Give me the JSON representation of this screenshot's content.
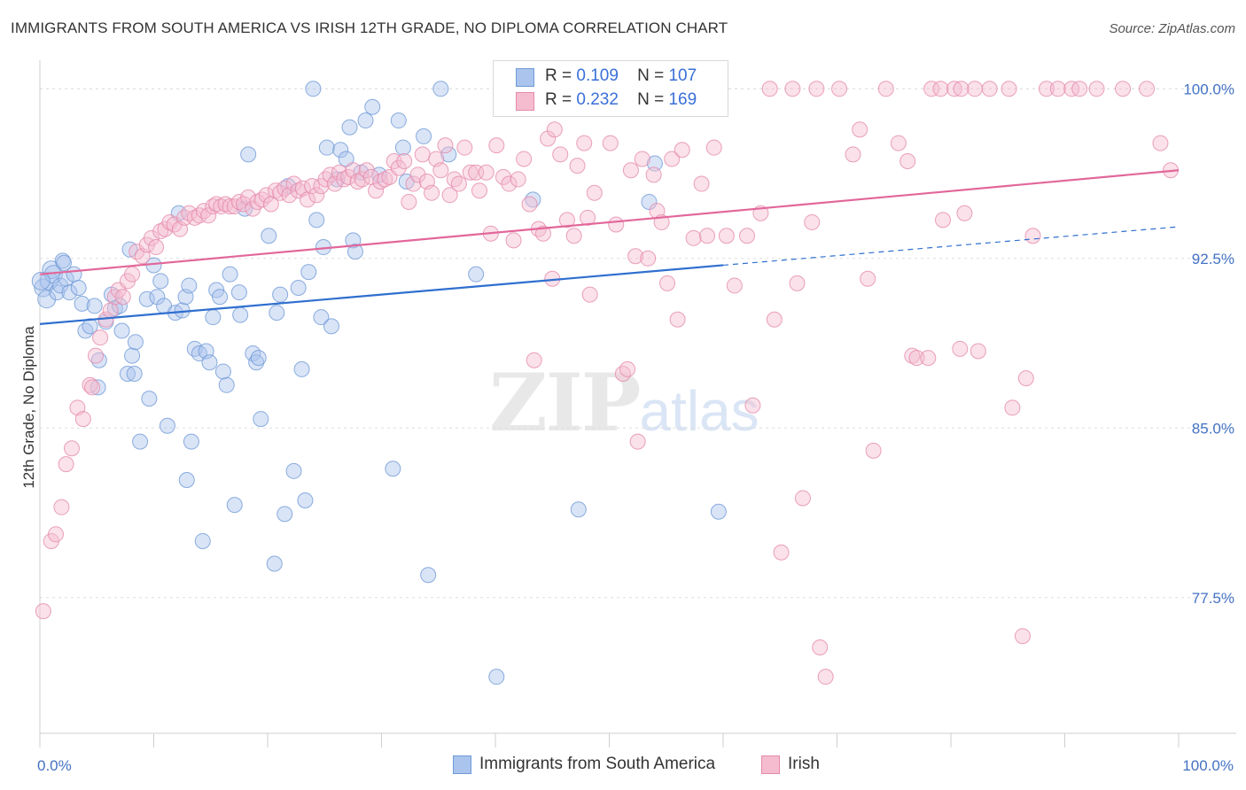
{
  "title": "IMMIGRANTS FROM SOUTH AMERICA VS IRISH 12TH GRADE, NO DIPLOMA CORRELATION CHART",
  "source": "Source: ZipAtlas.com",
  "watermark": {
    "zip": "ZIP",
    "atlas": "atlas"
  },
  "legend": {
    "r_label": "R =",
    "n_label": "N =",
    "rows": [
      {
        "r": "0.109",
        "n": "107",
        "color": "#aac4ee",
        "border": "#6f9ad6"
      },
      {
        "r": "0.232",
        "n": "169",
        "color": "#f5bcd0",
        "border": "#e58aab"
      }
    ]
  },
  "bottom_legend": [
    "Immigrants from South America",
    "Irish"
  ],
  "chart_data": {
    "type": "scatter",
    "title": "IMMIGRANTS FROM SOUTH AMERICA VS IRISH 12TH GRADE, NO DIPLOMA CORRELATION CHART",
    "xlabel": "",
    "ylabel": "12th Grade, No Diploma",
    "xlim": [
      0,
      100
    ],
    "ylim": [
      71.5,
      101.5
    ],
    "x_tick_labels": [
      "0.0%",
      "100.0%"
    ],
    "y_ticks": [
      100.0,
      92.5,
      85.0,
      77.5
    ],
    "y_tick_labels": [
      "100.0%",
      "92.5%",
      "85.0%",
      "77.5%"
    ],
    "grid": true,
    "legend_position": "top-center",
    "series": [
      {
        "name": "Immigrants from South America",
        "color": "#aac4ee",
        "stroke": "#6f9ad6",
        "trend": {
          "x0": 0,
          "y0": 89.6,
          "x1": 60,
          "y1": 92.2,
          "dash_to": 100,
          "dash_y": 93.9,
          "color": "#2f6fcf"
        },
        "points": [
          [
            0.3,
            91.2
          ],
          [
            0.6,
            90.7
          ],
          [
            0.8,
            91.5
          ],
          [
            1.0,
            92.0
          ],
          [
            1.2,
            91.8
          ],
          [
            1.5,
            91.0
          ],
          [
            1.8,
            91.3
          ],
          [
            2.0,
            92.4
          ],
          [
            2.3,
            91.6
          ],
          [
            2.6,
            91.0
          ],
          [
            3.0,
            91.8
          ],
          [
            3.4,
            91.2
          ],
          [
            3.7,
            90.5
          ],
          [
            4.0,
            89.3
          ],
          [
            4.4,
            89.5
          ],
          [
            4.8,
            90.4
          ],
          [
            5.2,
            88.0
          ],
          [
            5.1,
            86.8
          ],
          [
            5.8,
            89.7
          ],
          [
            6.3,
            90.9
          ],
          [
            6.6,
            90.3
          ],
          [
            7.0,
            90.4
          ],
          [
            7.2,
            89.3
          ],
          [
            7.7,
            87.4
          ],
          [
            8.1,
            88.2
          ],
          [
            8.3,
            87.4
          ],
          [
            8.4,
            88.8
          ],
          [
            7.9,
            92.9
          ],
          [
            8.8,
            84.4
          ],
          [
            9.4,
            90.7
          ],
          [
            9.6,
            86.3
          ],
          [
            10.0,
            92.2
          ],
          [
            10.3,
            90.8
          ],
          [
            10.6,
            91.5
          ],
          [
            10.9,
            90.4
          ],
          [
            11.2,
            85.1
          ],
          [
            11.9,
            90.1
          ],
          [
            12.2,
            94.5
          ],
          [
            12.5,
            90.2
          ],
          [
            12.8,
            90.8
          ],
          [
            12.9,
            82.7
          ],
          [
            13.1,
            91.3
          ],
          [
            13.3,
            84.4
          ],
          [
            13.6,
            88.5
          ],
          [
            14.0,
            88.3
          ],
          [
            14.3,
            80.0
          ],
          [
            14.6,
            88.4
          ],
          [
            14.9,
            87.9
          ],
          [
            15.2,
            89.9
          ],
          [
            15.5,
            91.1
          ],
          [
            15.8,
            90.8
          ],
          [
            16.1,
            87.5
          ],
          [
            16.4,
            86.9
          ],
          [
            16.7,
            91.8
          ],
          [
            17.1,
            81.6
          ],
          [
            17.5,
            91.0
          ],
          [
            17.6,
            90.0
          ],
          [
            18.0,
            94.7
          ],
          [
            18.3,
            97.1
          ],
          [
            18.7,
            88.3
          ],
          [
            19.0,
            87.9
          ],
          [
            19.2,
            88.1
          ],
          [
            19.4,
            85.4
          ],
          [
            20.1,
            93.5
          ],
          [
            20.6,
            79.0
          ],
          [
            20.8,
            90.1
          ],
          [
            21.1,
            90.9
          ],
          [
            21.5,
            81.2
          ],
          [
            21.8,
            95.7
          ],
          [
            22.3,
            83.1
          ],
          [
            22.7,
            91.2
          ],
          [
            23.0,
            87.6
          ],
          [
            23.3,
            81.8
          ],
          [
            23.6,
            91.9
          ],
          [
            24.0,
            100.0
          ],
          [
            24.3,
            94.2
          ],
          [
            24.7,
            89.9
          ],
          [
            24.9,
            93.0
          ],
          [
            25.6,
            89.5
          ],
          [
            25.2,
            97.4
          ],
          [
            26.1,
            96.0
          ],
          [
            26.4,
            97.3
          ],
          [
            26.9,
            96.9
          ],
          [
            27.2,
            98.3
          ],
          [
            27.5,
            93.3
          ],
          [
            27.7,
            92.8
          ],
          [
            28.2,
            96.3
          ],
          [
            28.6,
            98.6
          ],
          [
            29.2,
            99.2
          ],
          [
            29.8,
            96.2
          ],
          [
            31.0,
            83.2
          ],
          [
            31.5,
            98.6
          ],
          [
            31.9,
            97.4
          ],
          [
            32.2,
            95.9
          ],
          [
            33.7,
            97.9
          ],
          [
            34.1,
            78.5
          ],
          [
            35.2,
            100.0
          ],
          [
            35.9,
            97.1
          ],
          [
            38.3,
            91.8
          ],
          [
            40.1,
            74.0
          ],
          [
            43.3,
            95.1
          ],
          [
            47.3,
            81.4
          ],
          [
            53.5,
            95.0
          ],
          [
            54.0,
            96.7
          ],
          [
            59.6,
            81.3
          ],
          [
            0.1,
            91.5
          ],
          [
            2.1,
            92.3
          ]
        ]
      },
      {
        "name": "Irish",
        "color": "#f5bcd0",
        "stroke": "#e58aab",
        "trend": {
          "x0": 0,
          "y0": 91.8,
          "x1": 100,
          "y1": 96.4,
          "color": "#e2679a"
        },
        "points": [
          [
            0.3,
            76.9
          ],
          [
            1.0,
            80.0
          ],
          [
            1.4,
            80.3
          ],
          [
            1.9,
            81.5
          ],
          [
            2.3,
            83.4
          ],
          [
            2.8,
            84.1
          ],
          [
            3.3,
            85.9
          ],
          [
            3.8,
            85.4
          ],
          [
            4.4,
            86.9
          ],
          [
            4.6,
            86.8
          ],
          [
            4.9,
            88.2
          ],
          [
            5.3,
            89.0
          ],
          [
            5.8,
            89.8
          ],
          [
            6.2,
            90.2
          ],
          [
            6.6,
            90.8
          ],
          [
            6.9,
            91.1
          ],
          [
            7.3,
            90.8
          ],
          [
            7.7,
            91.5
          ],
          [
            8.1,
            91.8
          ],
          [
            8.5,
            92.8
          ],
          [
            9.0,
            92.6
          ],
          [
            9.4,
            93.1
          ],
          [
            9.8,
            93.4
          ],
          [
            10.2,
            93.0
          ],
          [
            10.6,
            93.7
          ],
          [
            11.0,
            93.8
          ],
          [
            11.4,
            94.1
          ],
          [
            11.8,
            94.0
          ],
          [
            12.3,
            93.8
          ],
          [
            12.7,
            94.3
          ],
          [
            13.1,
            94.5
          ],
          [
            13.6,
            94.3
          ],
          [
            14.0,
            94.4
          ],
          [
            14.4,
            94.6
          ],
          [
            14.8,
            94.4
          ],
          [
            15.2,
            94.8
          ],
          [
            15.5,
            94.9
          ],
          [
            15.9,
            94.8
          ],
          [
            16.3,
            94.9
          ],
          [
            16.7,
            94.8
          ],
          [
            17.1,
            94.8
          ],
          [
            17.5,
            95.0
          ],
          [
            17.9,
            94.9
          ],
          [
            18.3,
            95.2
          ],
          [
            18.7,
            94.7
          ],
          [
            19.1,
            95.0
          ],
          [
            19.5,
            95.1
          ],
          [
            19.9,
            95.3
          ],
          [
            20.3,
            94.9
          ],
          [
            20.7,
            95.5
          ],
          [
            21.1,
            95.4
          ],
          [
            21.5,
            95.6
          ],
          [
            21.9,
            95.3
          ],
          [
            22.3,
            95.8
          ],
          [
            22.7,
            95.5
          ],
          [
            23.1,
            95.6
          ],
          [
            23.5,
            95.1
          ],
          [
            23.9,
            95.7
          ],
          [
            24.3,
            95.3
          ],
          [
            24.7,
            95.7
          ],
          [
            25.1,
            96.0
          ],
          [
            25.5,
            96.2
          ],
          [
            25.9,
            95.8
          ],
          [
            26.3,
            96.3
          ],
          [
            26.7,
            96.0
          ],
          [
            27.1,
            96.1
          ],
          [
            27.5,
            96.4
          ],
          [
            27.9,
            95.9
          ],
          [
            28.3,
            96.0
          ],
          [
            28.7,
            96.4
          ],
          [
            29.1,
            96.1
          ],
          [
            29.5,
            95.5
          ],
          [
            29.9,
            95.9
          ],
          [
            30.3,
            96.0
          ],
          [
            30.7,
            96.1
          ],
          [
            31.1,
            96.8
          ],
          [
            31.5,
            96.5
          ],
          [
            32.0,
            96.8
          ],
          [
            32.4,
            95.0
          ],
          [
            32.8,
            95.8
          ],
          [
            33.2,
            96.2
          ],
          [
            33.6,
            97.1
          ],
          [
            34.0,
            95.9
          ],
          [
            34.4,
            95.4
          ],
          [
            34.8,
            96.9
          ],
          [
            35.2,
            96.4
          ],
          [
            35.6,
            97.5
          ],
          [
            36.0,
            95.3
          ],
          [
            36.4,
            96.0
          ],
          [
            36.8,
            95.8
          ],
          [
            37.3,
            97.4
          ],
          [
            37.8,
            96.3
          ],
          [
            38.3,
            96.3
          ],
          [
            38.6,
            95.5
          ],
          [
            39.2,
            96.3
          ],
          [
            39.6,
            93.6
          ],
          [
            40.1,
            97.5
          ],
          [
            40.7,
            96.1
          ],
          [
            41.2,
            95.8
          ],
          [
            41.6,
            93.3
          ],
          [
            42.0,
            96.0
          ],
          [
            42.5,
            96.9
          ],
          [
            43.0,
            94.9
          ],
          [
            43.4,
            88.0
          ],
          [
            43.8,
            93.8
          ],
          [
            44.2,
            93.6
          ],
          [
            44.6,
            97.8
          ],
          [
            45.0,
            91.6
          ],
          [
            45.2,
            98.2
          ],
          [
            45.7,
            97.1
          ],
          [
            46.3,
            94.2
          ],
          [
            46.9,
            93.5
          ],
          [
            47.2,
            96.6
          ],
          [
            47.8,
            97.6
          ],
          [
            48.1,
            94.3
          ],
          [
            48.3,
            90.9
          ],
          [
            48.7,
            95.4
          ],
          [
            49.2,
            100.0
          ],
          [
            50.1,
            97.6
          ],
          [
            50.6,
            94.0
          ],
          [
            51.2,
            87.4
          ],
          [
            51.6,
            87.6
          ],
          [
            51.9,
            96.4
          ],
          [
            52.3,
            92.6
          ],
          [
            52.5,
            84.4
          ],
          [
            52.9,
            96.9
          ],
          [
            53.4,
            92.5
          ],
          [
            53.9,
            96.2
          ],
          [
            54.2,
            94.6
          ],
          [
            54.6,
            94.1
          ],
          [
            55.1,
            91.4
          ],
          [
            55.5,
            96.9
          ],
          [
            56.0,
            89.8
          ],
          [
            56.4,
            97.3
          ],
          [
            57.4,
            93.4
          ],
          [
            58.1,
            95.8
          ],
          [
            58.6,
            93.5
          ],
          [
            59.2,
            97.4
          ],
          [
            59.5,
            100.0
          ],
          [
            60.3,
            93.5
          ],
          [
            61.0,
            91.3
          ],
          [
            62.1,
            93.5
          ],
          [
            62.6,
            86.0
          ],
          [
            63.3,
            94.5
          ],
          [
            64.1,
            100.0
          ],
          [
            64.5,
            89.8
          ],
          [
            65.1,
            79.5
          ],
          [
            66.1,
            100.0
          ],
          [
            66.5,
            91.4
          ],
          [
            67.0,
            81.9
          ],
          [
            67.8,
            94.1
          ],
          [
            68.2,
            100.0
          ],
          [
            68.5,
            75.3
          ],
          [
            69.0,
            74.0
          ],
          [
            70.2,
            100.0
          ],
          [
            71.4,
            97.1
          ],
          [
            72.0,
            98.2
          ],
          [
            72.7,
            91.6
          ],
          [
            73.2,
            84.0
          ],
          [
            74.3,
            100.0
          ],
          [
            75.4,
            97.6
          ],
          [
            76.2,
            96.8
          ],
          [
            76.6,
            88.2
          ],
          [
            77.0,
            88.1
          ],
          [
            78.0,
            88.1
          ],
          [
            78.3,
            100.0
          ],
          [
            79.3,
            94.2
          ],
          [
            80.3,
            100.0
          ],
          [
            80.8,
            88.5
          ],
          [
            81.2,
            94.5
          ],
          [
            82.1,
            100.0
          ],
          [
            82.4,
            88.4
          ],
          [
            83.4,
            100.0
          ],
          [
            85.1,
            100.0
          ],
          [
            85.4,
            85.9
          ],
          [
            86.3,
            75.8
          ],
          [
            86.6,
            87.2
          ],
          [
            87.2,
            93.5
          ],
          [
            88.4,
            100.0
          ],
          [
            89.4,
            100.0
          ],
          [
            90.6,
            100.0
          ],
          [
            91.3,
            100.0
          ],
          [
            92.8,
            100.0
          ],
          [
            95.1,
            100.0
          ],
          [
            97.2,
            100.0
          ],
          [
            98.4,
            97.6
          ],
          [
            99.3,
            96.4
          ],
          [
            80.9,
            100.0
          ],
          [
            79.1,
            100.0
          ]
        ]
      }
    ]
  }
}
